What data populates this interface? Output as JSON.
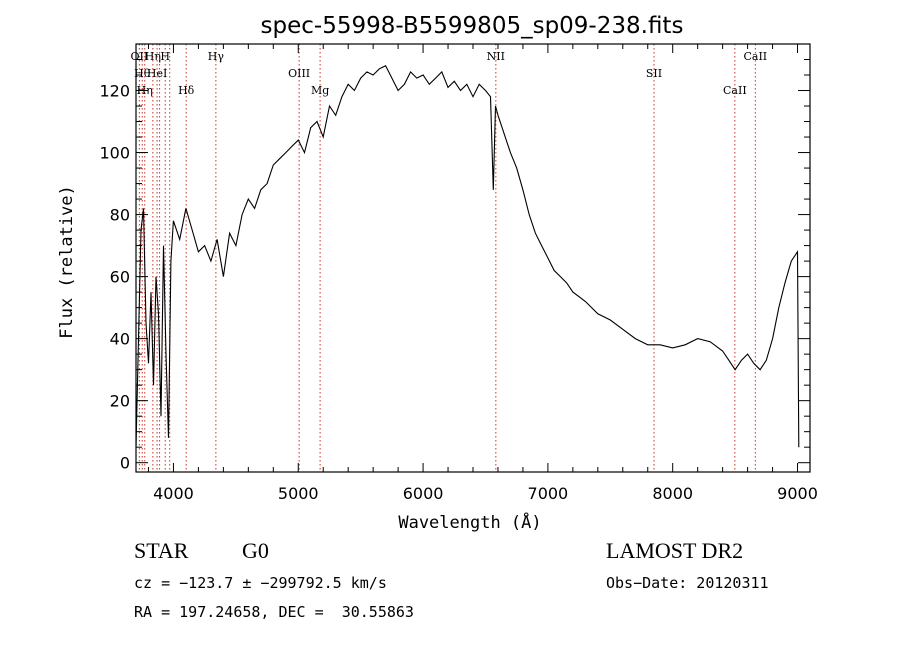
{
  "chart_data": {
    "type": "line",
    "title": "spec-55998-B5599805_sp09-238.fits",
    "xlabel": "Wavelength (Å)",
    "ylabel": "Flux (relative)",
    "xlim": [
      3700,
      9100
    ],
    "ylim": [
      -3,
      135
    ],
    "xticks": [
      4000,
      5000,
      6000,
      7000,
      8000,
      9000
    ],
    "yticks": [
      0,
      20,
      40,
      60,
      80,
      100,
      120
    ],
    "grid": false,
    "series": [
      {
        "color": "#000000",
        "x": [
          3700,
          3720,
          3740,
          3760,
          3780,
          3800,
          3820,
          3840,
          3860,
          3880,
          3900,
          3920,
          3940,
          3960,
          3980,
          4000,
          4050,
          4100,
          4150,
          4200,
          4250,
          4300,
          4350,
          4400,
          4450,
          4500,
          4550,
          4600,
          4650,
          4700,
          4750,
          4800,
          4850,
          4900,
          4950,
          5000,
          5050,
          5100,
          5150,
          5200,
          5250,
          5300,
          5350,
          5400,
          5450,
          5500,
          5550,
          5600,
          5650,
          5700,
          5750,
          5800,
          5850,
          5900,
          5950,
          6000,
          6050,
          6100,
          6150,
          6200,
          6250,
          6300,
          6350,
          6400,
          6450,
          6500,
          6540,
          6563,
          6580,
          6600,
          6650,
          6700,
          6750,
          6800,
          6850,
          6900,
          6950,
          7000,
          7050,
          7100,
          7150,
          7200,
          7300,
          7400,
          7500,
          7600,
          7700,
          7800,
          7900,
          8000,
          8100,
          8200,
          8300,
          8400,
          8450,
          8500,
          8550,
          8600,
          8650,
          8700,
          8750,
          8800,
          8850,
          8900,
          8950,
          9000,
          9010
        ],
        "y": [
          5,
          40,
          75,
          82,
          45,
          32,
          55,
          25,
          60,
          48,
          15,
          70,
          35,
          8,
          65,
          78,
          72,
          82,
          75,
          68,
          70,
          65,
          72,
          60,
          74,
          70,
          80,
          85,
          82,
          88,
          90,
          96,
          98,
          100,
          102,
          104,
          100,
          108,
          110,
          105,
          115,
          112,
          118,
          122,
          120,
          124,
          126,
          125,
          127,
          128,
          124,
          120,
          122,
          126,
          124,
          125,
          122,
          124,
          126,
          121,
          123,
          120,
          122,
          118,
          122,
          120,
          118,
          88,
          115,
          112,
          106,
          100,
          95,
          88,
          80,
          74,
          70,
          66,
          62,
          60,
          58,
          55,
          52,
          48,
          46,
          43,
          40,
          38,
          38,
          37,
          38,
          40,
          39,
          36,
          33,
          30,
          33,
          35,
          32,
          30,
          33,
          40,
          50,
          58,
          65,
          68,
          5
        ]
      }
    ],
    "lines": [
      {
        "x": 3727,
        "label": "OII"
      },
      {
        "x": 3750,
        "label": "Hθ"
      },
      {
        "x": 3770,
        "label": "Hη"
      },
      {
        "x": 3835,
        "label": "Hη"
      },
      {
        "x": 3869,
        "label": "HeI"
      },
      {
        "x": 3889,
        "label": ""
      },
      {
        "x": 3934,
        "label": "H"
      },
      {
        "x": 3970,
        "label": ""
      },
      {
        "x": 4102,
        "label": "Hδ"
      },
      {
        "x": 4340,
        "label": "Hγ"
      },
      {
        "x": 5007,
        "label": "OIII"
      },
      {
        "x": 5175,
        "label": "Mg"
      },
      {
        "x": 6583,
        "label": "NII"
      },
      {
        "x": 7850,
        "label": "SII"
      },
      {
        "x": 8498,
        "label": "CaII"
      },
      {
        "x": 8662,
        "label": "CaII"
      }
    ],
    "line_color": "#c0392b"
  },
  "info": {
    "object_class": "STAR",
    "subclass": "G0",
    "survey": "LAMOST DR2",
    "cz": "cz = −123.7 ± −299792.5 km/s",
    "obs_date": "Obs−Date: 20120311",
    "coords": "RA = 197.24658, DEC =  30.55863"
  }
}
